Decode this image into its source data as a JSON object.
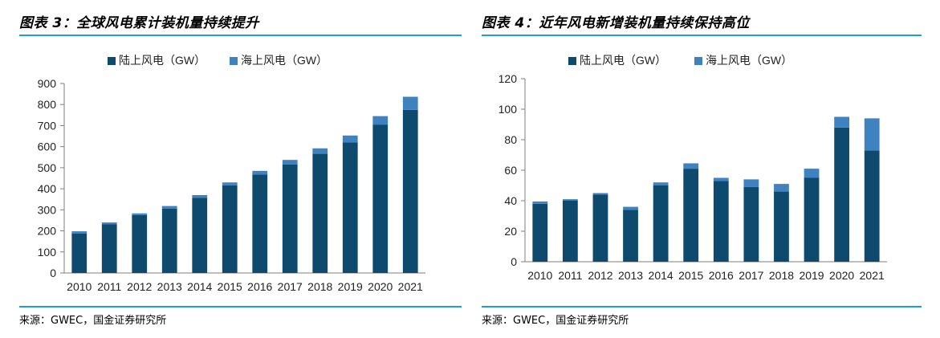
{
  "colors": {
    "onshore": "#0d4a6e",
    "offshore": "#3f82c0",
    "rule": "#1a9fd8",
    "axis": "#7f7f7f"
  },
  "chart_data": [
    {
      "type": "bar",
      "stacked": true,
      "title": "图表 3：全球风电累计装机量持续提升",
      "source": "来源：GWEC，国金证券研究所",
      "categories": [
        "2010",
        "2011",
        "2012",
        "2013",
        "2014",
        "2015",
        "2016",
        "2017",
        "2018",
        "2019",
        "2020",
        "2021"
      ],
      "series": [
        {
          "name": "陆上风电（GW）",
          "values": [
            188,
            232,
            275,
            306,
            357,
            416,
            467,
            515,
            566,
            620,
            705,
            775
          ]
        },
        {
          "name": "海上风电（GW）",
          "values": [
            10,
            8,
            8,
            12,
            13,
            14,
            18,
            22,
            26,
            33,
            40,
            62
          ]
        }
      ],
      "ylim": [
        0,
        900
      ],
      "yticks": [
        0,
        100,
        200,
        300,
        400,
        500,
        600,
        700,
        800,
        900
      ],
      "legend_position": "top"
    },
    {
      "type": "bar",
      "stacked": true,
      "title": "图表 4：近年风电新增装机量持续保持高位",
      "source": "来源：GWEC，国金证券研究所",
      "categories": [
        "2010",
        "2011",
        "2012",
        "2013",
        "2014",
        "2015",
        "2016",
        "2017",
        "2018",
        "2019",
        "2020",
        "2021"
      ],
      "series": [
        {
          "name": "陆上风电（GW）",
          "values": [
            38,
            40,
            44,
            34,
            50,
            61,
            53,
            49,
            46,
            55,
            88,
            73
          ]
        },
        {
          "name": "海上风电（GW）",
          "values": [
            1.5,
            1,
            1,
            2,
            2,
            3.5,
            2,
            5,
            5,
            6,
            7,
            21
          ]
        }
      ],
      "ylim": [
        0,
        120
      ],
      "yticks": [
        0,
        20,
        40,
        60,
        80,
        100,
        120
      ],
      "legend_position": "top"
    }
  ]
}
